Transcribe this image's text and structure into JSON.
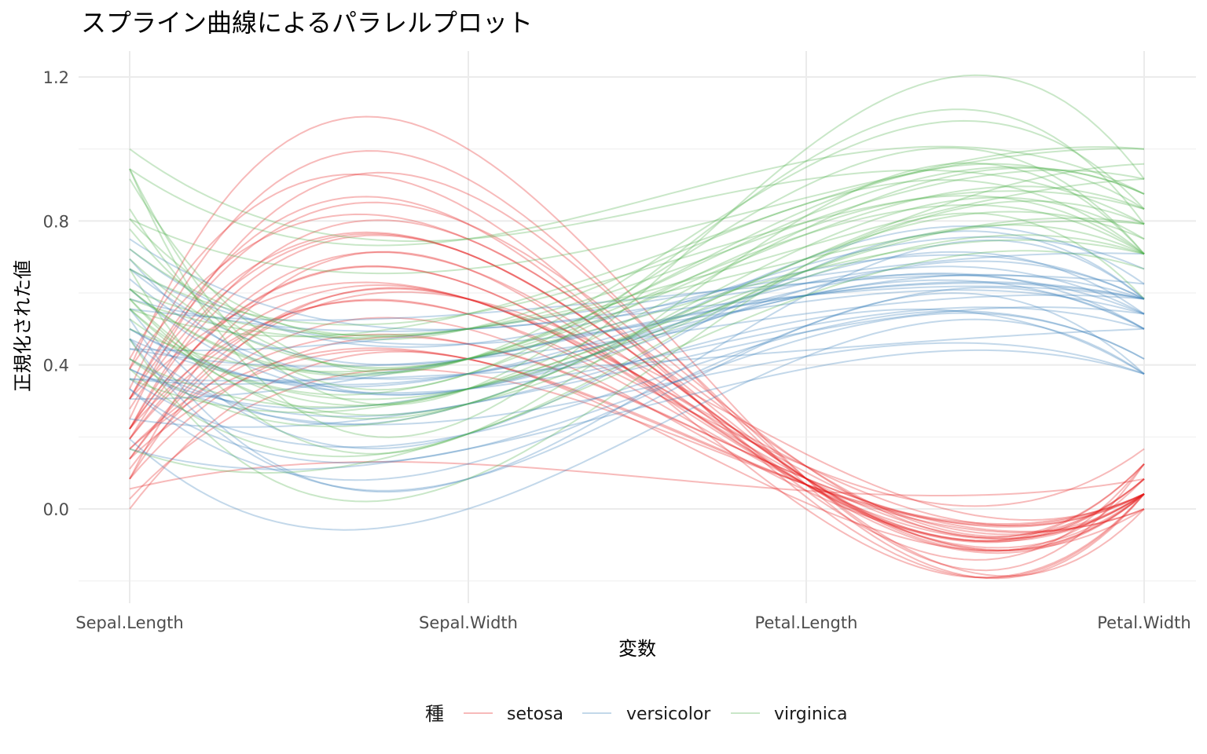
{
  "chart_data": {
    "type": "line",
    "subtype": "parallel-coordinates-spline",
    "title": "スプライン曲線によるパラレルプロット",
    "xlabel": "変数",
    "ylabel": "正規化された値",
    "categories": [
      "Sepal.Length",
      "Sepal.Width",
      "Petal.Length",
      "Petal.Width"
    ],
    "y_ticks": [
      "0.0",
      "0.4",
      "0.8",
      "1.2"
    ],
    "y_tick_values": [
      0,
      0.4,
      0.8,
      1.2
    ],
    "ylim": [
      -0.26,
      1.27
    ],
    "grid": true,
    "normalization": "min-max per variable",
    "variable_ranges": {
      "min": [
        4.3,
        2.0,
        1.0,
        0.1
      ],
      "max": [
        7.9,
        4.4,
        6.9,
        2.5
      ]
    },
    "legend": {
      "title": "種",
      "position": "bottom",
      "entries": [
        "setosa",
        "versicolor",
        "virginica"
      ]
    },
    "colors": {
      "setosa": "#E41A1C",
      "versicolor": "#377EB8",
      "virginica": "#4DAF4A"
    },
    "series": [
      {
        "name": "setosa",
        "rows": [
          [
            5.1,
            3.5,
            1.4,
            0.2
          ],
          [
            4.9,
            3.0,
            1.4,
            0.2
          ],
          [
            4.7,
            3.2,
            1.3,
            0.2
          ],
          [
            4.6,
            3.1,
            1.5,
            0.2
          ],
          [
            5.0,
            3.6,
            1.4,
            0.2
          ],
          [
            5.4,
            3.9,
            1.7,
            0.4
          ],
          [
            4.6,
            3.4,
            1.4,
            0.3
          ],
          [
            5.0,
            3.4,
            1.5,
            0.2
          ],
          [
            4.4,
            2.9,
            1.4,
            0.2
          ],
          [
            4.9,
            3.1,
            1.5,
            0.1
          ],
          [
            5.4,
            3.7,
            1.5,
            0.2
          ],
          [
            4.8,
            3.4,
            1.6,
            0.2
          ],
          [
            4.8,
            3.0,
            1.4,
            0.1
          ],
          [
            4.3,
            3.0,
            1.1,
            0.1
          ],
          [
            5.8,
            4.0,
            1.2,
            0.2
          ],
          [
            5.7,
            4.4,
            1.5,
            0.4
          ],
          [
            5.4,
            3.9,
            1.3,
            0.4
          ],
          [
            5.1,
            3.5,
            1.4,
            0.3
          ],
          [
            5.7,
            3.8,
            1.7,
            0.3
          ],
          [
            5.1,
            3.8,
            1.5,
            0.3
          ],
          [
            5.4,
            3.4,
            1.7,
            0.2
          ],
          [
            5.1,
            3.7,
            1.5,
            0.4
          ],
          [
            4.6,
            3.6,
            1.0,
            0.2
          ],
          [
            5.1,
            3.3,
            1.7,
            0.5
          ],
          [
            4.8,
            3.4,
            1.9,
            0.2
          ],
          [
            5.2,
            4.1,
            1.5,
            0.1
          ],
          [
            5.5,
            4.2,
            1.4,
            0.2
          ],
          [
            4.5,
            2.3,
            1.3,
            0.3
          ],
          [
            5.3,
            3.7,
            1.5,
            0.2
          ],
          [
            5.0,
            3.3,
            1.4,
            0.2
          ]
        ]
      },
      {
        "name": "versicolor",
        "rows": [
          [
            7.0,
            3.2,
            4.7,
            1.4
          ],
          [
            6.4,
            3.2,
            4.5,
            1.5
          ],
          [
            6.9,
            3.1,
            4.9,
            1.5
          ],
          [
            5.5,
            2.3,
            4.0,
            1.3
          ],
          [
            6.5,
            2.8,
            4.6,
            1.5
          ],
          [
            5.7,
            2.8,
            4.5,
            1.3
          ],
          [
            6.3,
            3.3,
            4.7,
            1.6
          ],
          [
            4.9,
            2.4,
            3.3,
            1.0
          ],
          [
            6.6,
            2.9,
            4.6,
            1.3
          ],
          [
            5.2,
            2.7,
            3.9,
            1.4
          ],
          [
            5.0,
            2.0,
            3.5,
            1.0
          ],
          [
            5.9,
            3.0,
            4.2,
            1.5
          ],
          [
            6.0,
            2.2,
            4.0,
            1.0
          ],
          [
            6.1,
            2.9,
            4.7,
            1.4
          ],
          [
            5.6,
            2.9,
            3.6,
            1.3
          ],
          [
            6.7,
            3.1,
            4.4,
            1.4
          ],
          [
            5.6,
            3.0,
            4.5,
            1.5
          ],
          [
            5.8,
            2.7,
            4.1,
            1.0
          ],
          [
            6.2,
            2.2,
            4.5,
            1.5
          ],
          [
            5.6,
            2.5,
            3.9,
            1.1
          ],
          [
            5.9,
            3.2,
            4.8,
            1.8
          ],
          [
            6.1,
            2.8,
            4.0,
            1.3
          ],
          [
            6.3,
            2.5,
            4.9,
            1.5
          ],
          [
            6.8,
            2.8,
            4.8,
            1.4
          ],
          [
            6.7,
            3.0,
            5.0,
            1.7
          ],
          [
            6.0,
            2.9,
            4.5,
            1.5
          ],
          [
            5.7,
            2.6,
            3.5,
            1.0
          ],
          [
            5.5,
            2.4,
            3.8,
            1.1
          ],
          [
            6.0,
            2.7,
            5.1,
            1.6
          ],
          [
            5.4,
            3.0,
            4.5,
            1.5
          ]
        ]
      },
      {
        "name": "virginica",
        "rows": [
          [
            6.3,
            3.3,
            6.0,
            2.5
          ],
          [
            5.8,
            2.7,
            5.1,
            1.9
          ],
          [
            7.1,
            3.0,
            5.9,
            2.1
          ],
          [
            6.3,
            2.9,
            5.6,
            1.8
          ],
          [
            6.5,
            3.0,
            5.8,
            2.2
          ],
          [
            7.6,
            3.0,
            6.6,
            2.1
          ],
          [
            4.9,
            2.5,
            4.5,
            1.7
          ],
          [
            7.3,
            2.9,
            6.3,
            1.8
          ],
          [
            6.7,
            2.5,
            5.8,
            1.8
          ],
          [
            7.2,
            3.6,
            6.1,
            2.5
          ],
          [
            6.5,
            3.2,
            5.1,
            2.0
          ],
          [
            6.4,
            2.7,
            5.3,
            1.9
          ],
          [
            6.8,
            3.0,
            5.5,
            2.1
          ],
          [
            5.7,
            2.5,
            5.0,
            2.0
          ],
          [
            5.8,
            2.8,
            5.1,
            2.4
          ],
          [
            6.4,
            3.2,
            5.3,
            2.3
          ],
          [
            6.5,
            3.0,
            5.5,
            1.8
          ],
          [
            7.7,
            3.8,
            6.7,
            2.2
          ],
          [
            7.7,
            2.6,
            6.9,
            2.3
          ],
          [
            6.0,
            2.2,
            5.0,
            1.5
          ],
          [
            6.9,
            3.2,
            5.7,
            2.3
          ],
          [
            5.6,
            2.8,
            4.9,
            2.0
          ],
          [
            7.7,
            2.8,
            6.7,
            2.0
          ],
          [
            6.3,
            2.7,
            4.9,
            1.8
          ],
          [
            6.7,
            3.3,
            5.7,
            2.1
          ],
          [
            7.2,
            3.2,
            6.0,
            1.8
          ],
          [
            6.2,
            2.8,
            4.8,
            1.8
          ],
          [
            6.1,
            3.0,
            4.9,
            1.8
          ],
          [
            7.9,
            3.8,
            6.4,
            2.0
          ],
          [
            6.4,
            2.8,
            5.6,
            2.2
          ]
        ]
      }
    ]
  }
}
